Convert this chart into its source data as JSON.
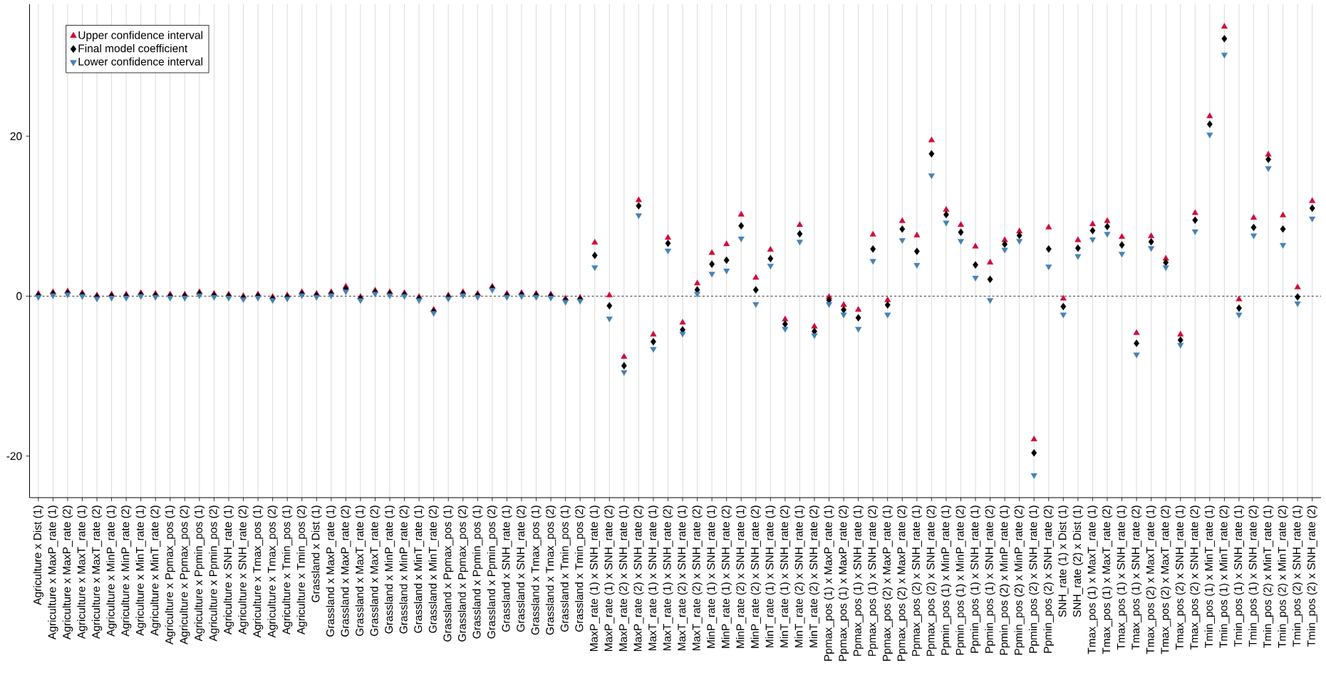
{
  "chart_data": {
    "type": "scatter",
    "categories": [
      "Agriculture x Dist (1)",
      "Agriculture x MaxP_rate (1)",
      "Agriculture x MaxP_rate (2)",
      "Agriculture x MaxT_rate (1)",
      "Agriculture x MaxT_rate (2)",
      "Agriculture x MinP_rate (1)",
      "Agriculture x MinP_rate (2)",
      "Agriculture x MinT_rate (1)",
      "Agriculture x MinT_rate (2)",
      "Agriculture x Ppmax_pos (1)",
      "Agriculture x Ppmax_pos (2)",
      "Agriculture x Ppmin_pos (1)",
      "Agriculture x Ppmin_pos (2)",
      "Agriculture x SNH_rate (1)",
      "Agriculture x SNH_rate (2)",
      "Agriculture x Tmax_pos (1)",
      "Agriculture x Tmax_pos (2)",
      "Agriculture x Tmin_pos (1)",
      "Agriculture x Tmin_pos (2)",
      "Grassland x Dist (1)",
      "Grassland x MaxP_rate (1)",
      "Grassland x MaxP_rate (2)",
      "Grassland x MaxT_rate (1)",
      "Grassland x MaxT_rate (2)",
      "Grassland x MinP_rate (1)",
      "Grassland x MinP_rate (2)",
      "Grassland x MinT_rate (1)",
      "Grassland x MinT_rate (2)",
      "Grassland x Ppmax_pos (1)",
      "Grassland x Ppmax_pos (2)",
      "Grassland x Ppmin_pos (1)",
      "Grassland x Ppmin_pos (2)",
      "Grassland x SNH_rate (1)",
      "Grassland x SNH_rate (2)",
      "Grassland x Tmax_pos (1)",
      "Grassland x Tmax_pos (2)",
      "Grassland x Tmin_pos (1)",
      "Grassland x Tmin_pos (2)",
      "MaxP_rate (1) x SNH_rate (1)",
      "MaxP_rate (1) x SNH_rate (2)",
      "MaxP_rate (2) x SNH_rate (1)",
      "MaxP_rate (2) x SNH_rate (2)",
      "MaxT_rate (1) x SNH_rate (1)",
      "MaxT_rate (1) x SNH_rate (2)",
      "MaxT_rate (2) x SNH_rate (1)",
      "MaxT_rate (2) x SNH_rate (2)",
      "MinP_rate (1) x SNH_rate (1)",
      "MinP_rate (1) x SNH_rate (2)",
      "MinP_rate (2) x SNH_rate (1)",
      "MinP_rate (2) x SNH_rate (2)",
      "MinT_rate (1) x SNH_rate (1)",
      "MinT_rate (1) x SNH_rate (2)",
      "MinT_rate (2) x SNH_rate (1)",
      "MinT_rate (2) x SNH_rate (2)",
      "Ppmax_pos (1) x MaxP_rate (1)",
      "Ppmax_pos (1) x MaxP_rate (2)",
      "Ppmax_pos (1) x SNH_rate (1)",
      "Ppmax_pos (1) x SNH_rate (2)",
      "Ppmax_pos (2) x MaxP_rate (1)",
      "Ppmax_pos (2) x MaxP_rate (2)",
      "Ppmax_pos (2) x SNH_rate (1)",
      "Ppmax_pos (2) x SNH_rate (2)",
      "Ppmin_pos (1) x MinP_rate (1)",
      "Ppmin_pos (1) x MinP_rate (2)",
      "Ppmin_pos (1) x SNH_rate (1)",
      "Ppmin_pos (1) x SNH_rate (2)",
      "Ppmin_pos (2) x MinP_rate (1)",
      "Ppmin_pos (2) x MinP_rate (2)",
      "Ppmin_pos (2) x SNH_rate (1)",
      "Ppmin_pos (2) x SNH_rate (2)",
      "SNH_rate (1) x Dist (1)",
      "SNH_rate (2) x Dist (1)",
      "Tmax_pos (1) x MaxT_rate (1)",
      "Tmax_pos (1) x MaxT_rate (2)",
      "Tmax_pos (1) x SNH_rate (1)",
      "Tmax_pos (1) x SNH_rate (2)",
      "Tmax_pos (2) x MaxT_rate (1)",
      "Tmax_pos (2) x MaxT_rate (2)",
      "Tmax_pos (2) x SNH_rate (1)",
      "Tmax_pos (2) x SNH_rate (2)",
      "Tmin_pos (1) x MinT_rate (1)",
      "Tmin_pos (1) x MinT_rate (2)",
      "Tmin_pos (1) x SNH_rate (1)",
      "Tmin_pos (1) x SNH_rate (2)",
      "Tmin_pos (2) x MinT_rate (1)",
      "Tmin_pos (2) x MinT_rate (2)",
      "Tmin_pos (2) x SNH_rate (1)",
      "Tmin_pos (2) x SNH_rate (2)"
    ],
    "series": [
      {
        "name": "Upper confidence interval",
        "color": "#d4083c",
        "marker": "triangle",
        "values": [
          0.3,
          0.5,
          0.6,
          0.4,
          0.1,
          0.2,
          0.2,
          0.4,
          0.3,
          0.2,
          0.2,
          0.5,
          0.3,
          0.2,
          0.0,
          0.2,
          -0.1,
          0.1,
          0.5,
          0.3,
          0.5,
          1.2,
          -0.1,
          0.7,
          0.5,
          0.4,
          -0.1,
          -1.7,
          0.1,
          0.5,
          0.3,
          1.2,
          0.3,
          0.4,
          0.3,
          0.2,
          -0.3,
          -0.2,
          6.7,
          0.1,
          -7.6,
          12.0,
          -4.8,
          7.3,
          -3.3,
          1.6,
          5.4,
          6.5,
          10.2,
          2.3,
          5.8,
          -2.9,
          8.9,
          -3.8,
          -0.1,
          -1.1,
          -1.7,
          7.7,
          -0.5,
          9.4,
          7.6,
          19.5,
          10.8,
          8.9,
          6.2,
          4.2,
          7.0,
          8.1,
          -17.9,
          8.6,
          -0.3,
          7.0,
          9.0,
          9.4,
          7.4,
          -4.6,
          7.5,
          4.7,
          -4.8,
          10.4,
          22.5,
          33.7,
          -0.4,
          9.8,
          17.7,
          10.1,
          1.1,
          11.9
        ]
      },
      {
        "name": "Final model coefficient",
        "color": "#000000",
        "marker": "diamond",
        "values": [
          0.1,
          0.3,
          0.4,
          0.2,
          -0.1,
          0.0,
          0.0,
          0.2,
          0.1,
          0.0,
          0.0,
          0.3,
          0.1,
          0.0,
          -0.2,
          0.0,
          -0.3,
          -0.1,
          0.3,
          0.1,
          0.3,
          0.9,
          -0.3,
          0.5,
          0.3,
          0.2,
          -0.3,
          -1.9,
          -0.1,
          0.3,
          0.1,
          1.0,
          0.1,
          0.2,
          0.1,
          0.0,
          -0.5,
          -0.4,
          5.1,
          -1.2,
          -8.7,
          11.3,
          -5.7,
          6.6,
          -4.2,
          0.8,
          4.0,
          4.5,
          8.8,
          0.8,
          4.7,
          -3.5,
          7.8,
          -4.4,
          -0.5,
          -1.7,
          -2.7,
          5.9,
          -1.1,
          8.4,
          5.6,
          17.8,
          10.2,
          8.0,
          3.9,
          2.1,
          6.5,
          7.6,
          -19.6,
          5.9,
          -1.3,
          6.0,
          8.2,
          8.7,
          6.4,
          -5.9,
          6.8,
          4.2,
          -5.5,
          9.5,
          21.5,
          32.2,
          -1.5,
          8.6,
          17.1,
          8.4,
          -0.1,
          11.0
        ]
      },
      {
        "name": "Lower confidence interval",
        "color": "#4682b4",
        "marker": "triangle-down",
        "values": [
          -0.1,
          0.1,
          0.2,
          0.0,
          -0.3,
          -0.2,
          -0.2,
          0.0,
          -0.1,
          -0.2,
          -0.2,
          0.1,
          -0.1,
          -0.2,
          -0.4,
          -0.2,
          -0.5,
          -0.3,
          0.1,
          -0.1,
          0.1,
          0.6,
          -0.5,
          0.3,
          0.1,
          0.0,
          -0.5,
          -2.1,
          -0.3,
          0.1,
          -0.1,
          0.8,
          -0.1,
          0.0,
          -0.1,
          -0.2,
          -0.7,
          -0.6,
          3.6,
          -2.8,
          -9.5,
          10.1,
          -6.6,
          5.7,
          -4.7,
          0.3,
          2.8,
          3.2,
          7.2,
          -1.0,
          3.8,
          -4.1,
          6.8,
          -4.9,
          -1.0,
          -2.3,
          -4.1,
          4.4,
          -2.3,
          7.0,
          3.9,
          15.1,
          9.2,
          6.9,
          2.3,
          -0.5,
          5.8,
          6.9,
          -22.4,
          3.7,
          -2.3,
          5.0,
          7.1,
          7.8,
          5.3,
          -7.3,
          6.0,
          3.6,
          -6.1,
          8.1,
          20.2,
          30.2,
          -2.3,
          7.6,
          16.0,
          6.4,
          -0.9,
          9.7
        ]
      }
    ],
    "ylim": [
      -25.2,
      36.5
    ],
    "yticks": [
      -20,
      0,
      20
    ],
    "ref_lines": [
      {
        "axis": "y",
        "value": 0,
        "color": "#000000",
        "line_style": "dashed"
      }
    ],
    "grid": "x",
    "legend": "top left"
  }
}
